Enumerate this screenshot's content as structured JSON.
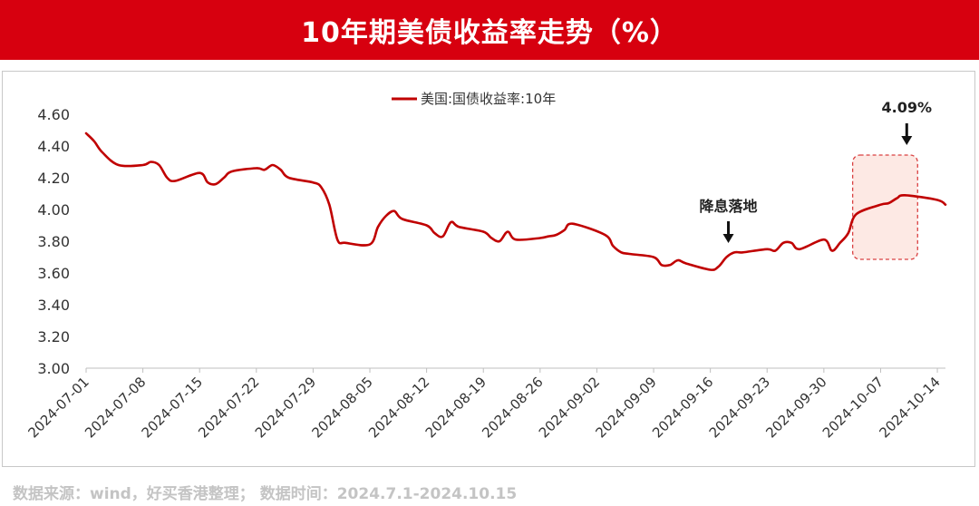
{
  "banner": {
    "title": "10年期美债收益率走势（%）"
  },
  "footer": {
    "source": "数据来源：wind，好买香港整理； 数据时间：2024.7.1-2024.10.15"
  },
  "colors": {
    "banner": "#d7000f",
    "line": "#c00000",
    "highlight_fill": "#fde5df",
    "highlight_border": "#d94040"
  },
  "chart_data": {
    "type": "line",
    "title": "",
    "xlabel": "",
    "ylabel": "",
    "legend": {
      "position": "top-center",
      "label": "美国:国债收益率:10年"
    },
    "ylim": [
      3.0,
      4.6
    ],
    "yticks": [
      "3.00",
      "3.20",
      "3.40",
      "3.60",
      "3.80",
      "4.00",
      "4.20",
      "4.40",
      "4.60"
    ],
    "xticks": [
      "2024-07-01",
      "2024-07-08",
      "2024-07-15",
      "2024-07-22",
      "2024-07-29",
      "2024-08-05",
      "2024-08-12",
      "2024-08-19",
      "2024-08-26",
      "2024-09-02",
      "2024-09-09",
      "2024-09-16",
      "2024-09-23",
      "2024-09-30",
      "2024-10-07",
      "2024-10-14"
    ],
    "grid": false,
    "series": [
      {
        "name": "美国:国债收益率:10年",
        "points": [
          [
            "2024-07-01",
            4.48
          ],
          [
            "2024-07-02",
            4.43
          ],
          [
            "2024-07-03",
            4.36
          ],
          [
            "2024-07-05",
            4.28
          ],
          [
            "2024-07-08",
            4.28
          ],
          [
            "2024-07-09",
            4.3
          ],
          [
            "2024-07-10",
            4.28
          ],
          [
            "2024-07-11",
            4.2
          ],
          [
            "2024-07-12",
            4.18
          ],
          [
            "2024-07-15",
            4.23
          ],
          [
            "2024-07-16",
            4.17
          ],
          [
            "2024-07-17",
            4.16
          ],
          [
            "2024-07-18",
            4.2
          ],
          [
            "2024-07-19",
            4.24
          ],
          [
            "2024-07-22",
            4.26
          ],
          [
            "2024-07-23",
            4.25
          ],
          [
            "2024-07-24",
            4.28
          ],
          [
            "2024-07-25",
            4.25
          ],
          [
            "2024-07-26",
            4.2
          ],
          [
            "2024-07-29",
            4.17
          ],
          [
            "2024-07-30",
            4.14
          ],
          [
            "2024-07-31",
            4.03
          ],
          [
            "2024-08-01",
            3.81
          ],
          [
            "2024-08-02",
            3.79
          ],
          [
            "2024-08-05",
            3.78
          ],
          [
            "2024-08-06",
            3.89
          ],
          [
            "2024-08-07",
            3.96
          ],
          [
            "2024-08-08",
            3.99
          ],
          [
            "2024-08-09",
            3.94
          ],
          [
            "2024-08-12",
            3.9
          ],
          [
            "2024-08-13",
            3.85
          ],
          [
            "2024-08-14",
            3.83
          ],
          [
            "2024-08-15",
            3.92
          ],
          [
            "2024-08-16",
            3.89
          ],
          [
            "2024-08-19",
            3.86
          ],
          [
            "2024-08-20",
            3.82
          ],
          [
            "2024-08-21",
            3.8
          ],
          [
            "2024-08-22",
            3.86
          ],
          [
            "2024-08-23",
            3.81
          ],
          [
            "2024-08-26",
            3.82
          ],
          [
            "2024-08-27",
            3.83
          ],
          [
            "2024-08-28",
            3.84
          ],
          [
            "2024-08-29",
            3.87
          ],
          [
            "2024-08-30",
            3.91
          ],
          [
            "2024-09-03",
            3.84
          ],
          [
            "2024-09-04",
            3.77
          ],
          [
            "2024-09-05",
            3.73
          ],
          [
            "2024-09-06",
            3.72
          ],
          [
            "2024-09-09",
            3.7
          ],
          [
            "2024-09-10",
            3.65
          ],
          [
            "2024-09-11",
            3.65
          ],
          [
            "2024-09-12",
            3.68
          ],
          [
            "2024-09-13",
            3.66
          ],
          [
            "2024-09-16",
            3.62
          ],
          [
            "2024-09-17",
            3.64
          ],
          [
            "2024-09-18",
            3.7
          ],
          [
            "2024-09-19",
            3.73
          ],
          [
            "2024-09-20",
            3.73
          ],
          [
            "2024-09-23",
            3.75
          ],
          [
            "2024-09-24",
            3.74
          ],
          [
            "2024-09-25",
            3.79
          ],
          [
            "2024-09-26",
            3.79
          ],
          [
            "2024-09-27",
            3.75
          ],
          [
            "2024-09-30",
            3.81
          ],
          [
            "2024-10-01",
            3.74
          ],
          [
            "2024-10-02",
            3.79
          ],
          [
            "2024-10-03",
            3.85
          ],
          [
            "2024-10-04",
            3.97
          ],
          [
            "2024-10-07",
            4.03
          ],
          [
            "2024-10-08",
            4.04
          ],
          [
            "2024-10-09",
            4.07
          ],
          [
            "2024-10-10",
            4.09
          ],
          [
            "2024-10-14",
            4.06
          ],
          [
            "2024-10-15",
            4.03
          ]
        ]
      }
    ],
    "annotations": [
      {
        "text": "降息落地",
        "date": "2024-09-18",
        "value": 3.73,
        "type": "arrow"
      },
      {
        "text": "4.09%",
        "date": "2024-10-10",
        "value": 4.09,
        "type": "arrow-highlight",
        "highlight_from": "2024-10-04",
        "highlight_to": "2024-10-10"
      }
    ]
  }
}
